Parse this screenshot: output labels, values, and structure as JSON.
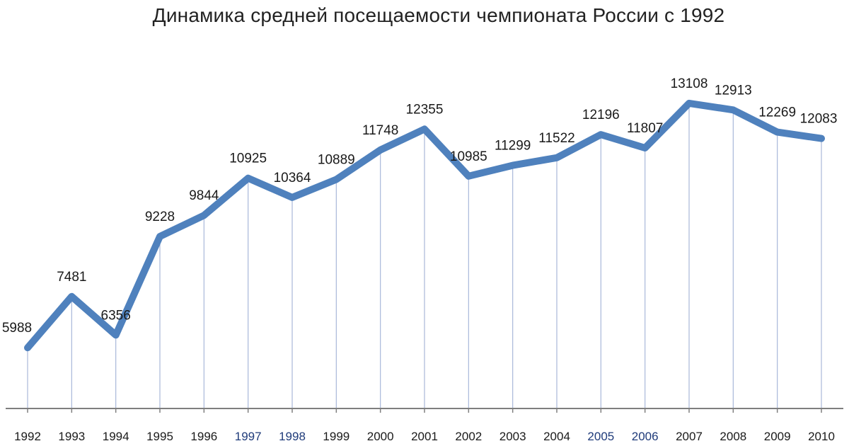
{
  "chart_data": {
    "type": "line",
    "title": "Динамика средней посещаемости чемпионата России с 1992",
    "xlabel": "",
    "ylabel": "",
    "categories": [
      "1992",
      "1993",
      "1994",
      "1995",
      "1996",
      "1997",
      "1998",
      "1999",
      "2000",
      "2001",
      "2002",
      "2003",
      "2004",
      "2005",
      "2006",
      "2007",
      "2008",
      "2009",
      "2010"
    ],
    "values": [
      5988,
      7481,
      6356,
      9228,
      9844,
      10925,
      10364,
      10889,
      11748,
      12355,
      10985,
      11299,
      11522,
      12196,
      11807,
      13108,
      12913,
      12269,
      12083
    ],
    "ylim": [
      4000,
      14000
    ],
    "grid": "vertical drop lines",
    "legend": "none",
    "data_labels": true
  },
  "colors": {
    "line": "#4F81BD",
    "dropline": "#A9B7D9",
    "axis": "#7F7F7F",
    "tick_dark": "#1a1a1a",
    "tick_blue": "#1F3B7A"
  },
  "blue_ticks": [
    "1997",
    "1998",
    "2005",
    "2006"
  ]
}
